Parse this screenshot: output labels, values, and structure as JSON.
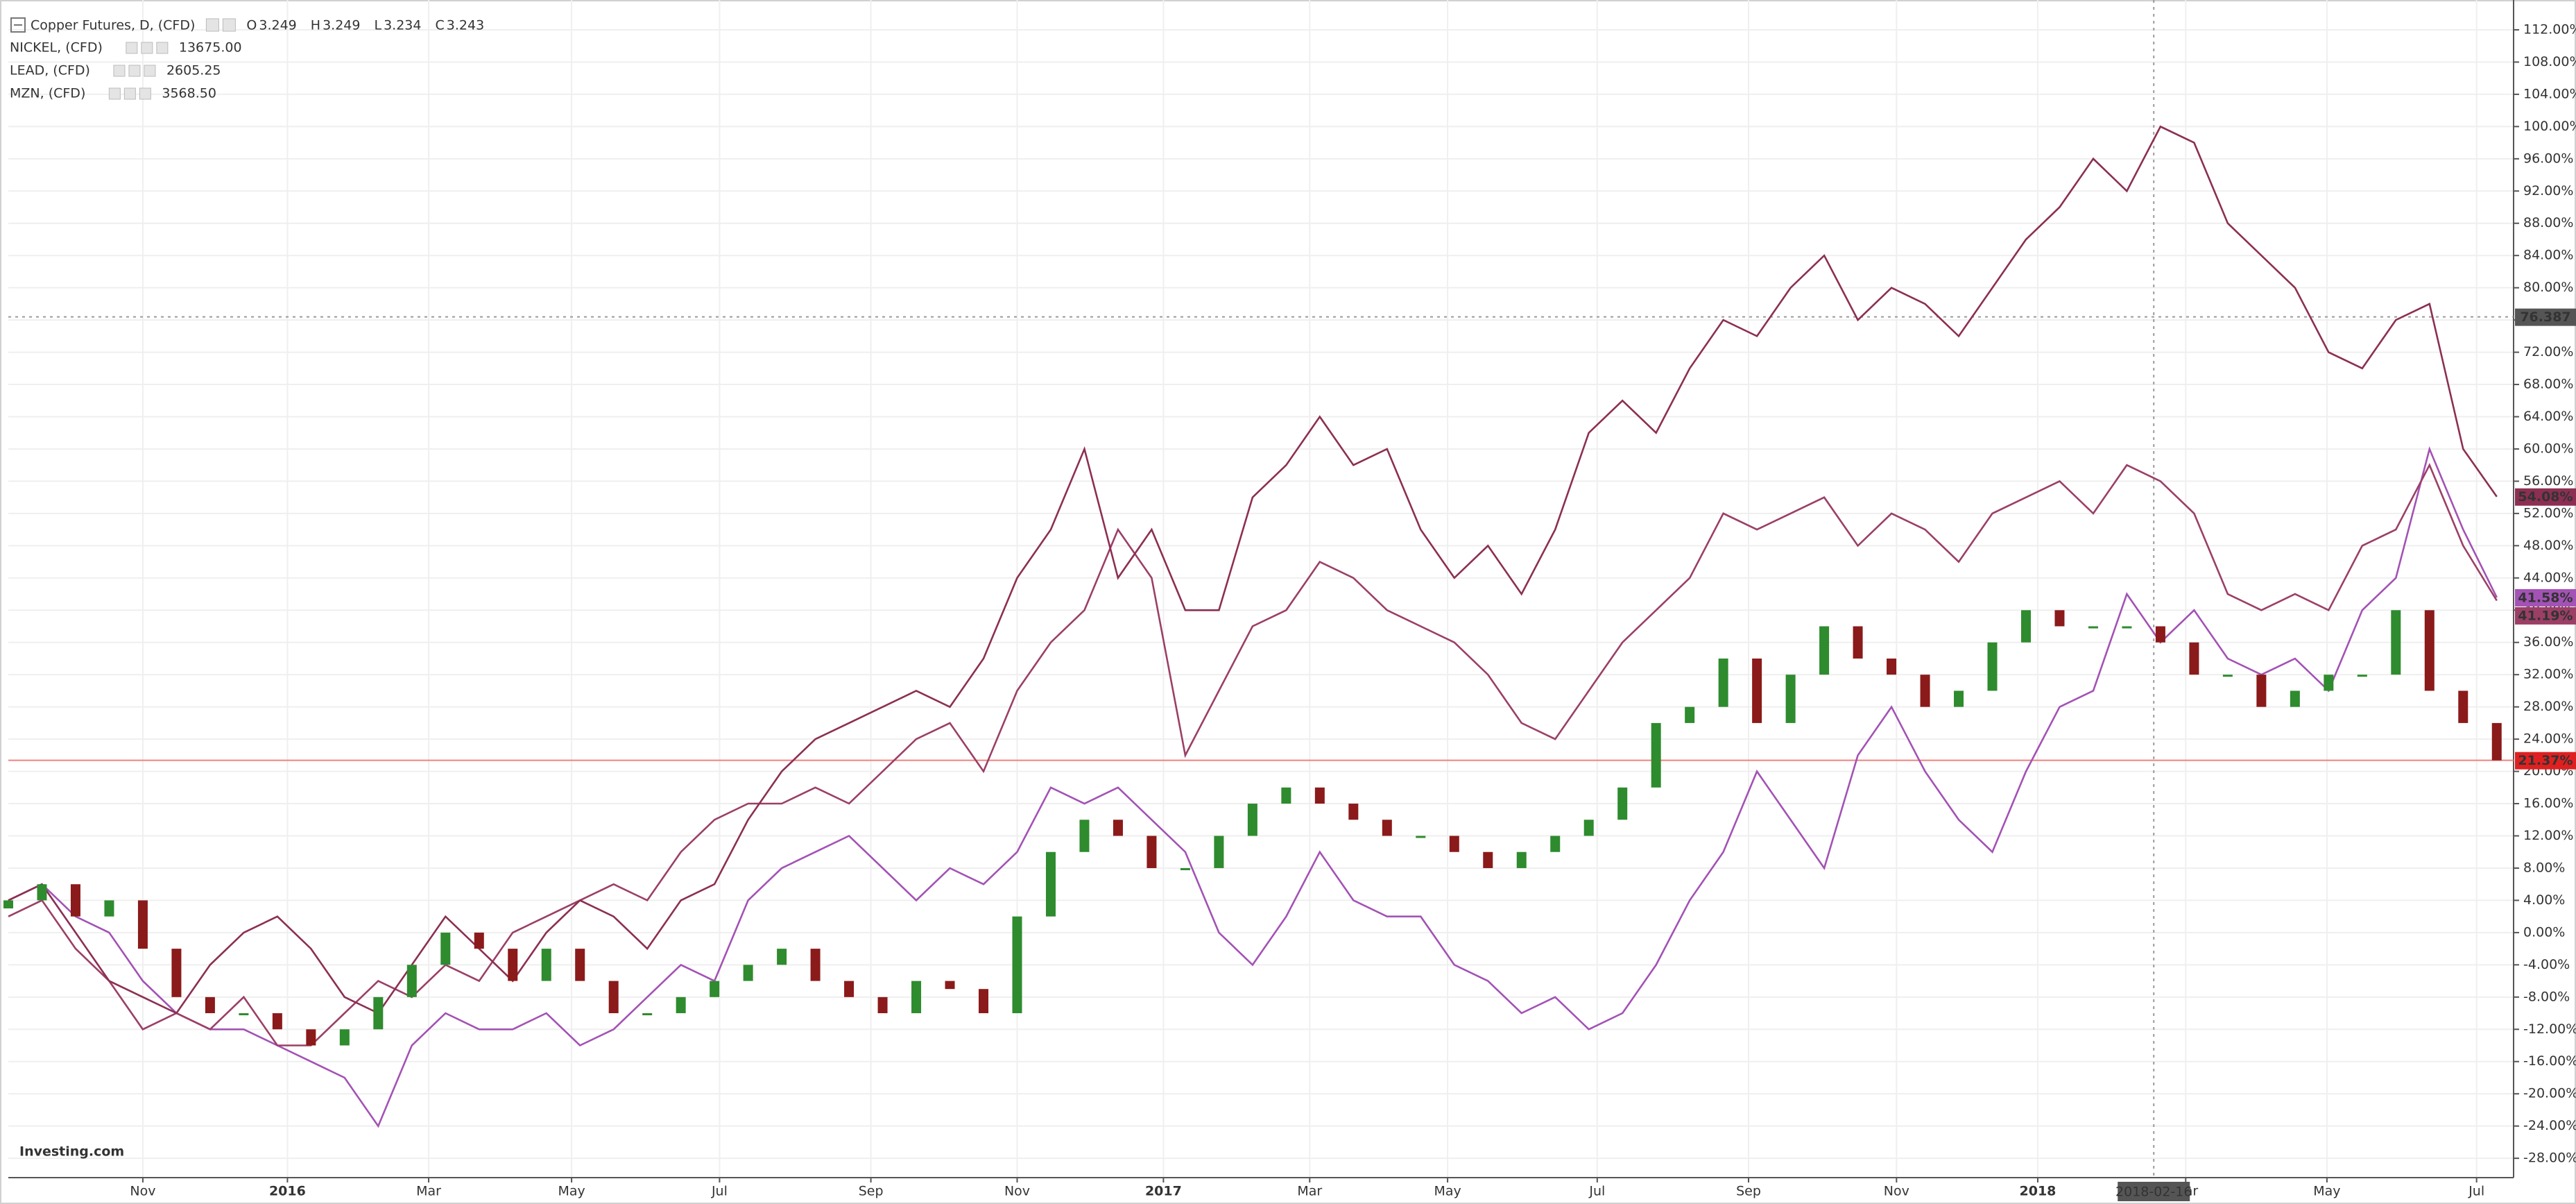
{
  "chart_data": {
    "type": "line",
    "title": "Copper Futures, D, (CFD)",
    "ohlc": [
      {
        "key": "O",
        "value": 3.249
      },
      {
        "key": "H",
        "value": 3.249
      },
      {
        "key": "L",
        "value": 3.234
      },
      {
        "key": "C",
        "value": 3.243
      }
    ],
    "logo": "Investing.com",
    "x": [
      0,
      2,
      4,
      6,
      8,
      10,
      12,
      14,
      16,
      18,
      20,
      22,
      24,
      26,
      28,
      30,
      32,
      34,
      36,
      38,
      40,
      42,
      44,
      46,
      48,
      50,
      52,
      54,
      56,
      58,
      60,
      62,
      64,
      66,
      68,
      70,
      72,
      74,
      76,
      78,
      80,
      82,
      84,
      86,
      88,
      90,
      92,
      94,
      96,
      98,
      100,
      102,
      104,
      106,
      108,
      110,
      112,
      114,
      116,
      118,
      120,
      122,
      124,
      126,
      128,
      130,
      132,
      134,
      136,
      138,
      140,
      142,
      144,
      146,
      148
    ],
    "xlim": [
      0,
      149
    ],
    "xticks": [
      {
        "value": 8,
        "label": "Nov"
      },
      {
        "value": 16.6,
        "label": "2016"
      },
      {
        "value": 25,
        "label": "Mar"
      },
      {
        "value": 33.5,
        "label": "May"
      },
      {
        "value": 42.3,
        "label": "Jul"
      },
      {
        "value": 51.3,
        "label": "Sep"
      },
      {
        "value": 60,
        "label": "Nov"
      },
      {
        "value": 68.7,
        "label": "2017"
      },
      {
        "value": 77.4,
        "label": "Mar"
      },
      {
        "value": 85.6,
        "label": "May"
      },
      {
        "value": 94.5,
        "label": "Jul"
      },
      {
        "value": 103.5,
        "label": "Sep"
      },
      {
        "value": 112.3,
        "label": "Nov"
      },
      {
        "value": 120.7,
        "label": "2018"
      },
      {
        "value": 129.5,
        "label": "Mar"
      },
      {
        "value": 137.9,
        "label": "May"
      },
      {
        "value": 146.8,
        "label": "Jul"
      }
    ],
    "ylim": [
      -30.4,
      115.7
    ],
    "yticks": [
      {
        "value": 112,
        "label": "112.00%"
      },
      {
        "value": 108,
        "label": "108.00%"
      },
      {
        "value": 104,
        "label": "104.00%"
      },
      {
        "value": 100,
        "label": "100.00%"
      },
      {
        "value": 96,
        "label": "96.00%"
      },
      {
        "value": 92,
        "label": "92.00%"
      },
      {
        "value": 88,
        "label": "88.00%"
      },
      {
        "value": 84,
        "label": "84.00%"
      },
      {
        "value": 80,
        "label": "80.00%"
      },
      {
        "value": 76,
        "label": "76.00%"
      },
      {
        "value": 72,
        "label": "72.00%"
      },
      {
        "value": 68,
        "label": "68.00%"
      },
      {
        "value": 64,
        "label": "64.00%"
      },
      {
        "value": 60,
        "label": "60.00%"
      },
      {
        "value": 56,
        "label": "56.00%"
      },
      {
        "value": 52,
        "label": "52.00%"
      },
      {
        "value": 48,
        "label": "48.00%"
      },
      {
        "value": 44,
        "label": "44.00%"
      },
      {
        "value": 40,
        "label": "40.00%"
      },
      {
        "value": 36,
        "label": "36.00%"
      },
      {
        "value": 32,
        "label": "32.00%"
      },
      {
        "value": 28,
        "label": "28.00%"
      },
      {
        "value": 24,
        "label": "24.00%"
      },
      {
        "value": 20,
        "label": "20.00%"
      },
      {
        "value": 16,
        "label": "16.00%"
      },
      {
        "value": 12,
        "label": "12.00%"
      },
      {
        "value": 8,
        "label": "8.00%"
      },
      {
        "value": 4,
        "label": "4.00%"
      },
      {
        "value": 0,
        "label": "0.00%"
      },
      {
        "value": -4,
        "label": "-4.00%"
      },
      {
        "value": -8,
        "label": "-8.00%"
      },
      {
        "value": -12,
        "label": "-12.00%"
      },
      {
        "value": -16,
        "label": "-16.00%"
      },
      {
        "value": -20,
        "label": "-20.00%"
      },
      {
        "value": -24,
        "label": "-24.00%"
      },
      {
        "value": -28,
        "label": "-28.00%"
      }
    ],
    "grid": true,
    "crosshair": {
      "x": {
        "value": 127.6,
        "label": "2018-02-16"
      },
      "y": 76.387
    },
    "series": [
      {
        "name": "NICKEL, (CFD)",
        "color": "#a352b5",
        "legend_value": "13675.00",
        "last_label": "41.58%",
        "values": [
          4,
          6,
          2,
          0,
          -6,
          -10,
          -12,
          -12,
          -14,
          -16,
          -18,
          -24,
          -14,
          -10,
          -12,
          -12,
          -10,
          -14,
          -12,
          -8,
          -4,
          -6,
          4,
          8,
          10,
          12,
          8,
          4,
          8,
          6,
          10,
          18,
          16,
          18,
          14,
          10,
          0,
          -4,
          2,
          10,
          4,
          2,
          2,
          -4,
          -6,
          -10,
          -8,
          -12,
          -10,
          -4,
          4,
          10,
          20,
          14,
          8,
          22,
          28,
          20,
          14,
          10,
          20,
          28,
          30,
          42,
          36,
          40,
          34,
          32,
          34,
          30,
          40,
          44,
          60,
          50,
          41.58
        ]
      },
      {
        "name": "LEAD, (CFD)",
        "color": "#9b3f66",
        "legend_value": "2605.25",
        "last_label": "41.19%",
        "values": [
          2,
          4,
          -2,
          -6,
          -12,
          -10,
          -12,
          -8,
          -14,
          -14,
          -10,
          -6,
          -8,
          -4,
          -6,
          0,
          2,
          4,
          6,
          4,
          10,
          14,
          16,
          16,
          18,
          16,
          20,
          24,
          26,
          20,
          30,
          36,
          40,
          50,
          44,
          22,
          30,
          38,
          40,
          46,
          44,
          40,
          38,
          36,
          32,
          26,
          24,
          30,
          36,
          40,
          44,
          52,
          50,
          52,
          54,
          48,
          52,
          50,
          46,
          52,
          54,
          56,
          52,
          58,
          56,
          52,
          42,
          40,
          42,
          40,
          48,
          50,
          58,
          48,
          41.19
        ]
      },
      {
        "name": "MZN, (CFD)",
        "color": "#8c2f52",
        "legend_value": "3568.50",
        "last_label": "54.08%",
        "values": [
          4,
          6,
          0,
          -6,
          -8,
          -10,
          -4,
          0,
          2,
          -2,
          -8,
          -10,
          -4,
          2,
          -2,
          -6,
          0,
          4,
          2,
          -2,
          4,
          6,
          14,
          20,
          24,
          26,
          28,
          30,
          28,
          34,
          44,
          50,
          60,
          44,
          50,
          40,
          40,
          54,
          58,
          64,
          58,
          60,
          50,
          44,
          48,
          42,
          50,
          62,
          66,
          62,
          70,
          76,
          74,
          80,
          84,
          76,
          80,
          78,
          74,
          80,
          86,
          90,
          96,
          92,
          100,
          98,
          88,
          84,
          80,
          72,
          70,
          76,
          78,
          60,
          54.08
        ]
      }
    ],
    "candles": {
      "up_color": "#2e8b2e",
      "down_color": "#8b1a1a",
      "line_color": "#f08080",
      "last_label": "21.37%",
      "open": [
        3,
        4,
        6,
        2,
        4,
        -2,
        -8,
        -10,
        -10,
        -12,
        -14,
        -12,
        -8,
        -4,
        0,
        -2,
        -6,
        -2,
        -6,
        -10,
        -10,
        -8,
        -6,
        -4,
        -2,
        -6,
        -8,
        -10,
        -6,
        -7,
        -10,
        2,
        10,
        14,
        12,
        8,
        8,
        12,
        16,
        18,
        16,
        14,
        12,
        12,
        10,
        8,
        10,
        12,
        14,
        18,
        26,
        28,
        34,
        26,
        32,
        38,
        34,
        32,
        28,
        30,
        36,
        40,
        38,
        38,
        38,
        36,
        32,
        32,
        28,
        30,
        32,
        32,
        40,
        30,
        26
      ],
      "close": [
        4,
        6,
        2,
        4,
        -2,
        -8,
        -10,
        -10,
        -12,
        -14,
        -12,
        -8,
        -4,
        0,
        -2,
        -6,
        -2,
        -6,
        -10,
        -10,
        -8,
        -6,
        -4,
        -2,
        -6,
        -8,
        -10,
        -6,
        -7,
        -10,
        2,
        10,
        14,
        12,
        8,
        8,
        12,
        16,
        18,
        16,
        14,
        12,
        12,
        10,
        8,
        10,
        12,
        14,
        18,
        26,
        28,
        34,
        26,
        32,
        38,
        34,
        32,
        28,
        30,
        36,
        40,
        38,
        38,
        38,
        36,
        32,
        32,
        28,
        30,
        32,
        32,
        40,
        30,
        26,
        21.37
      ]
    }
  }
}
